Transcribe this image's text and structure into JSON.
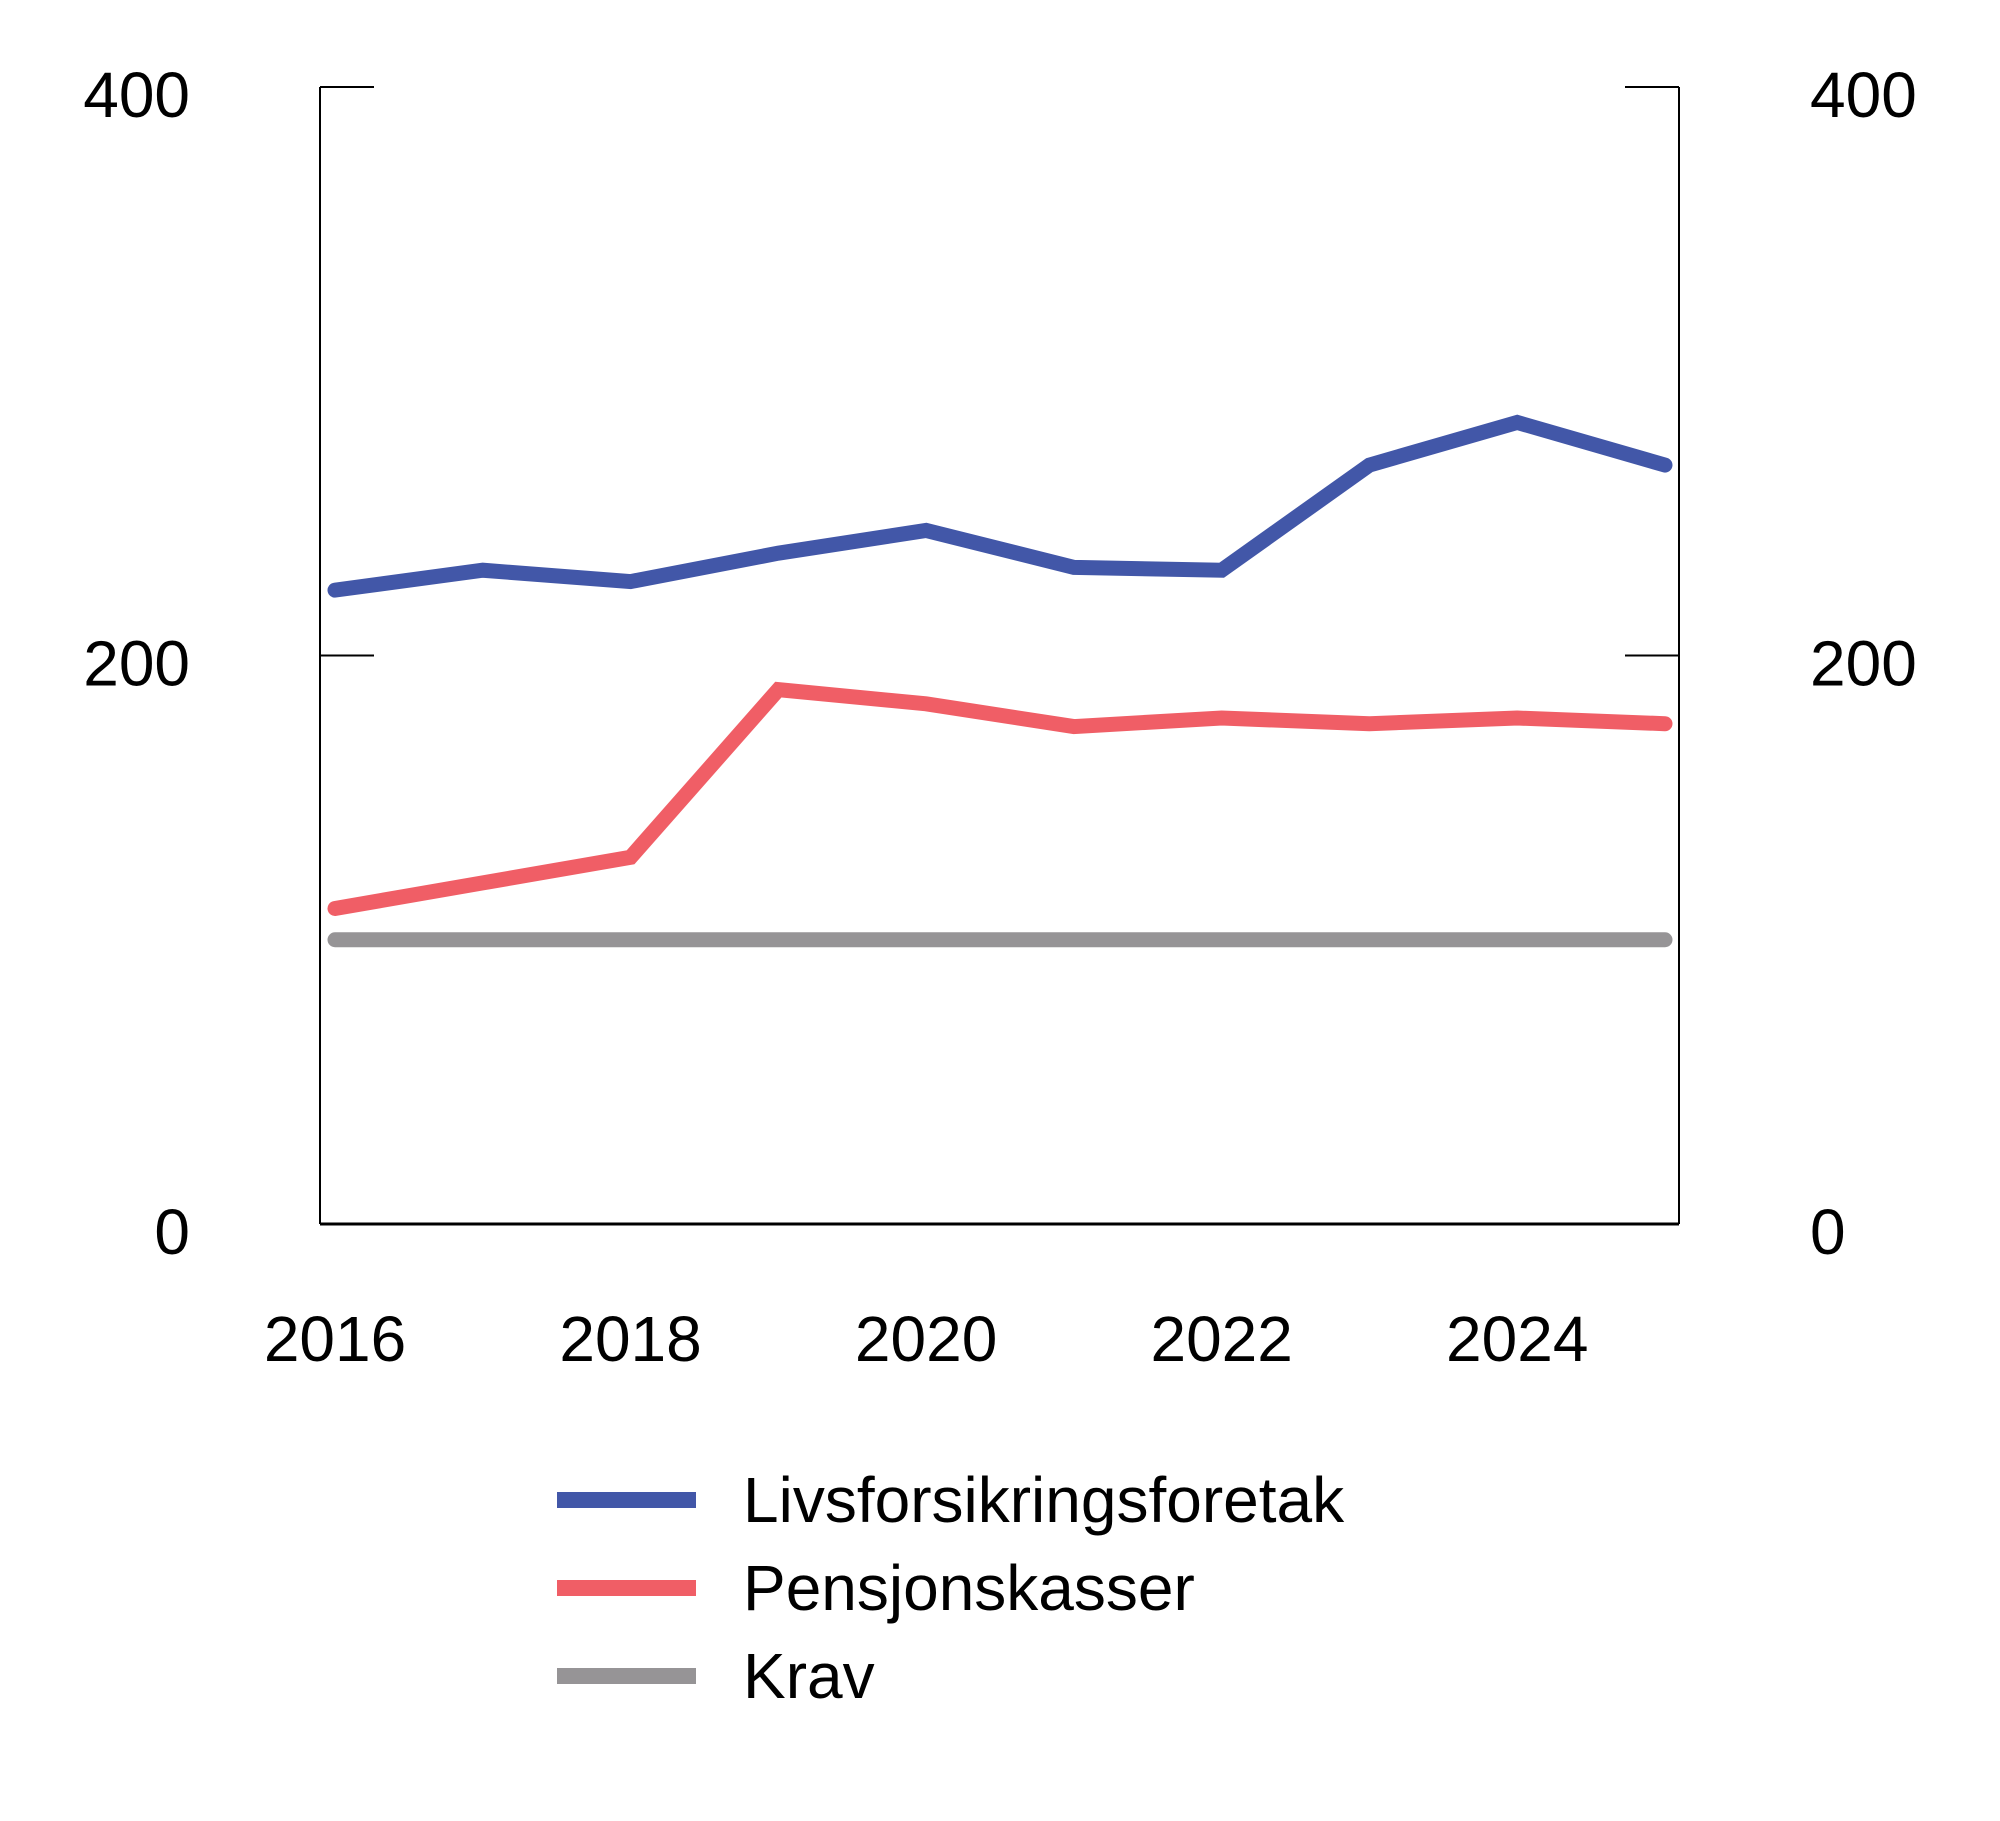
{
  "chart_data": {
    "type": "line",
    "title": "",
    "xlabel": "",
    "ylabel": "",
    "x": [
      2016,
      2017,
      2018,
      2019,
      2020,
      2021,
      2022,
      2023,
      2024,
      2025
    ],
    "x_tick_labels": [
      "2016",
      "2018",
      "2020",
      "2022",
      "2024"
    ],
    "x_tick_values": [
      2016,
      2018,
      2020,
      2022,
      2024
    ],
    "ylim": [
      0,
      400
    ],
    "y_ticks": [
      0,
      200,
      400
    ],
    "y_tick_labels_left": [
      "0",
      "200",
      "400"
    ],
    "y_tick_labels_right": [
      "0",
      "200",
      "400"
    ],
    "grid": false,
    "legend_position": "bottom",
    "series": [
      {
        "name": "Livsforsikringsforetak",
        "color": "#4257A8",
        "values": [
          223,
          230,
          226,
          236,
          244,
          231,
          230,
          267,
          282,
          267
        ]
      },
      {
        "name": "Pensjonskasser",
        "color": "#F05E66",
        "values": [
          111,
          120,
          129,
          188,
          183,
          175,
          178,
          176,
          178,
          176
        ]
      },
      {
        "name": "Krav",
        "color": "#969496",
        "values": [
          100,
          100,
          100,
          100,
          100,
          100,
          100,
          100,
          100,
          100
        ]
      }
    ]
  },
  "legend": {
    "items": [
      {
        "label": "Livsforsikringsforetak",
        "color": "#4257A8"
      },
      {
        "label": "Pensjonskasser",
        "color": "#F05E66"
      },
      {
        "label": "Krav",
        "color": "#969496"
      }
    ]
  }
}
